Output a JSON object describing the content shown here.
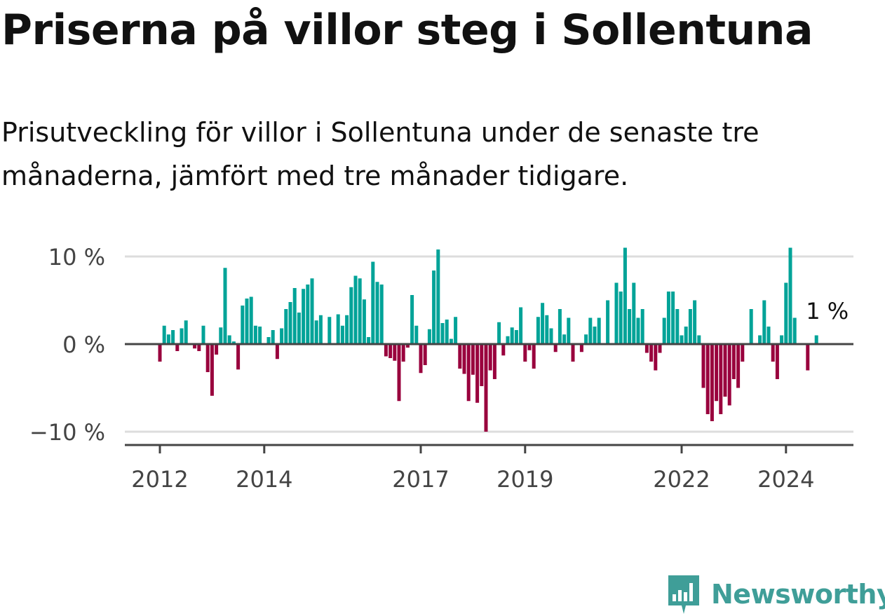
{
  "header": {
    "title": "Priserna på villor steg i Sollentuna",
    "subtitle": "Prisutveckling för villor i Sollentuna under de senaste tre månaderna, jämfört med tre månader tidigare."
  },
  "colors": {
    "positive": "#00a398",
    "negative": "#99003d",
    "grid": "#dddddd",
    "axis": "#444444"
  },
  "chart_data": {
    "type": "bar",
    "title": "Priserna på villor steg i Sollentuna",
    "xlabel": "",
    "ylabel": "",
    "ylim": [
      -10,
      10
    ],
    "y_ticks": [
      {
        "value": 10,
        "label": "10 %"
      },
      {
        "value": 0,
        "label": "0 %"
      },
      {
        "value": -10,
        "label": "−10 %"
      }
    ],
    "x_ticks": [
      {
        "index": 0,
        "label": "2012"
      },
      {
        "index": 24,
        "label": "2014"
      },
      {
        "index": 60,
        "label": "2017"
      },
      {
        "index": 84,
        "label": "2019"
      },
      {
        "index": 120,
        "label": "2022"
      },
      {
        "index": 144,
        "label": "2024"
      }
    ],
    "annotation": {
      "index": 146,
      "label": "1 %"
    },
    "series": [
      {
        "name": "Prisutveckling",
        "values": [
          -2,
          2.1,
          1.1,
          1.6,
          -0.8,
          1.8,
          2.7,
          0,
          -0.5,
          -0.8,
          2.1,
          -3.2,
          -5.9,
          -1.2,
          1.9,
          8.7,
          1.0,
          0.3,
          -2.9,
          4.4,
          5.2,
          5.4,
          2.1,
          2.0,
          0,
          0.8,
          1.6,
          -1.7,
          1.8,
          4.0,
          4.8,
          6.4,
          3.6,
          6.3,
          6.8,
          7.5,
          2.7,
          3.3,
          0,
          3.1,
          0,
          3.4,
          2.1,
          3.3,
          6.5,
          7.8,
          7.5,
          5.1,
          0.8,
          9.4,
          7.1,
          6.8,
          -1.4,
          -1.6,
          -1.9,
          -6.5,
          -2.0,
          -0.4,
          5.6,
          2.1,
          -3.3,
          -2.4,
          1.7,
          8.4,
          10.8,
          2.4,
          2.8,
          0.6,
          3.1,
          -2.8,
          -3.4,
          -6.5,
          -3.5,
          -6.7,
          -4.8,
          -10,
          -3.0,
          -4.0,
          2.5,
          -1.3,
          0.9,
          1.9,
          1.6,
          4.2,
          -2.0,
          -0.7,
          -2.8,
          3.1,
          4.7,
          3.3,
          1.8,
          -0.9,
          4.0,
          1.1,
          3.0,
          -2.0,
          0,
          -0.9,
          1.1,
          3.0,
          2.0,
          3.0,
          0,
          5.0,
          0,
          7.0,
          6.0,
          11.0,
          4.0,
          7.0,
          3.0,
          4.0,
          -1.0,
          -2.0,
          -3.0,
          -1.0,
          3.0,
          6.0,
          6.0,
          4.0,
          1.0,
          2.0,
          4.0,
          5.0,
          1.0,
          -5.0,
          -8.0,
          -8.8,
          -6.5,
          -8.0,
          -6.0,
          -7.0,
          -4.0,
          -5.0,
          -2.0,
          0,
          4.0,
          0,
          1.0,
          5.0,
          2.0,
          -2.0,
          -4.0,
          1.0,
          7.0,
          11.0,
          3.0,
          0,
          0,
          -3.0,
          0,
          1.0
        ]
      }
    ]
  },
  "footer": {
    "logo_text": "Newsworthy"
  }
}
